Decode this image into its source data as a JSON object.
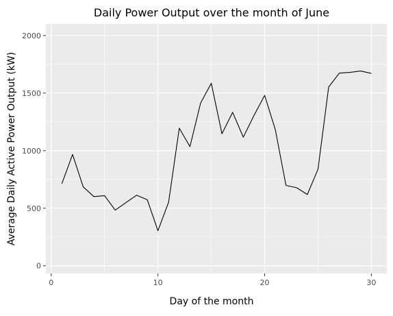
{
  "chart_data": {
    "type": "line",
    "title": "Daily Power Output over the month of June",
    "xlabel": "Day of the month",
    "ylabel": "Average Daily Active Power Output (kW)",
    "xlim": [
      -0.5,
      31.45
    ],
    "ylim": [
      -67,
      2100
    ],
    "xticks": [
      0,
      10,
      20,
      30
    ],
    "xtick_labels": [
      "0",
      "10",
      "20",
      "30"
    ],
    "xminor": [
      5,
      15,
      25
    ],
    "yticks": [
      0,
      500,
      1000,
      1500,
      2000
    ],
    "ytick_labels": [
      "0",
      "500",
      "1000",
      "1500",
      "2000"
    ],
    "yminor": [
      250,
      750,
      1250,
      1750
    ],
    "grid": true,
    "colors": {
      "panel": "#ebebeb",
      "grid": "#ffffff",
      "line": "#000000"
    },
    "series": [
      {
        "x": [
          1,
          2,
          3,
          4,
          5,
          6,
          7,
          8,
          9,
          10,
          11,
          12,
          13,
          14,
          15,
          16,
          17,
          18,
          19,
          20,
          21,
          22,
          23,
          24,
          25,
          26,
          27,
          28,
          29,
          30
        ],
        "y": [
          713,
          967,
          685,
          601,
          609,
          483,
          549,
          613,
          574,
          305,
          552,
          1195,
          1035,
          1414,
          1585,
          1147,
          1333,
          1117,
          1305,
          1480,
          1182,
          698,
          678,
          619,
          839,
          1553,
          1673,
          1680,
          1692,
          1671
        ]
      }
    ]
  }
}
